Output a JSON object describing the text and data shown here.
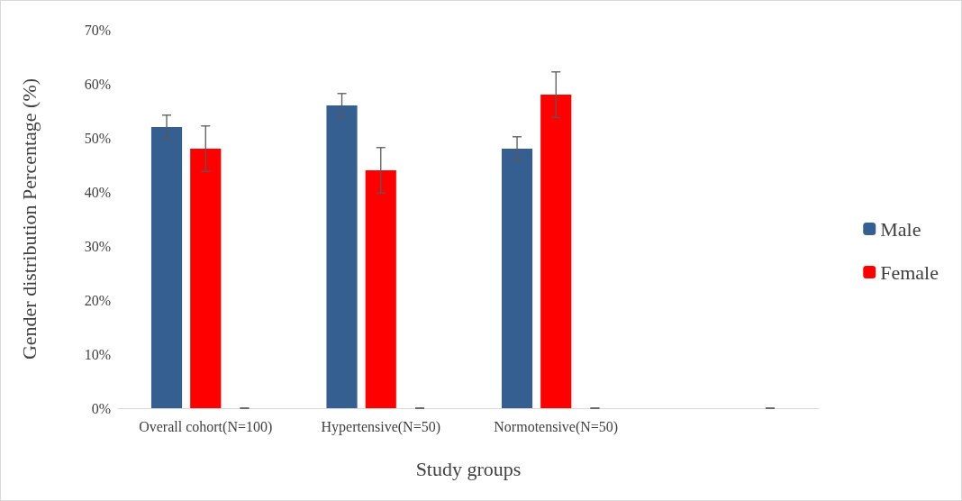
{
  "chart_data": {
    "type": "bar",
    "xlabel": "Study groups",
    "ylabel": "Gender distribution Percentage (%)",
    "categories": [
      "Overall cohort(N=100)",
      "Hypertensive(N=50)",
      "Normotensive(N=50)",
      null
    ],
    "series": [
      {
        "name": "Male",
        "color": "#355f91",
        "values": [
          52,
          56,
          48,
          null
        ],
        "errors": [
          2.2,
          2.2,
          2.2,
          null
        ]
      },
      {
        "name": "Female",
        "color": "#ff0000",
        "values": [
          48,
          44,
          58,
          null
        ],
        "errors": [
          4.2,
          4.2,
          4.2,
          null
        ]
      },
      {
        "color": "#a5a5a5",
        "values": [
          0,
          0,
          0,
          0
        ],
        "errors": [
          0,
          0,
          0,
          0
        ]
      }
    ],
    "ylim": [
      0,
      70
    ],
    "yticks": [
      {
        "value": 0,
        "label": "0%"
      },
      {
        "value": 10,
        "label": "10%"
      },
      {
        "value": 20,
        "label": "20%"
      },
      {
        "value": 30,
        "label": "30%"
      },
      {
        "value": 40,
        "label": "40%"
      },
      {
        "value": 50,
        "label": "50%"
      },
      {
        "value": 60,
        "label": "60%"
      },
      {
        "value": 70,
        "label": "70%"
      }
    ],
    "grid": false,
    "legend": "right"
  }
}
